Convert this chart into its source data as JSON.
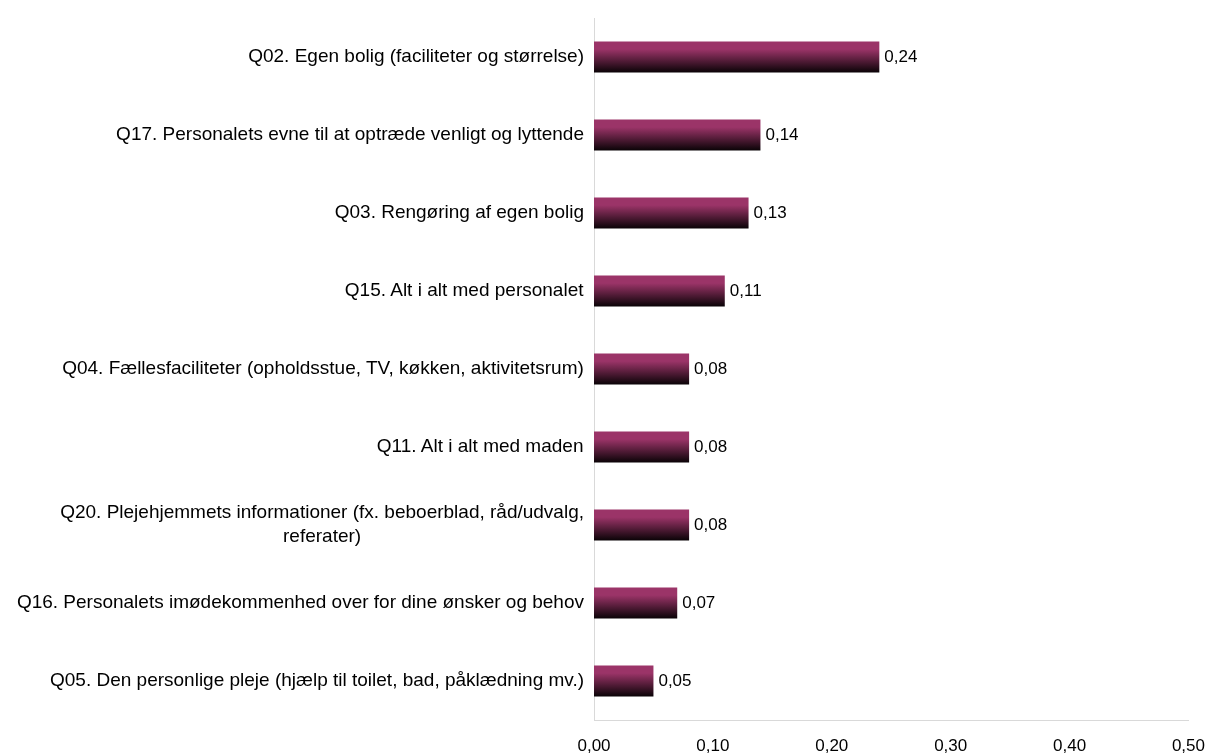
{
  "chart_data": {
    "type": "bar",
    "orientation": "horizontal",
    "categories": [
      "Q02. Egen bolig (faciliteter og størrelse)",
      "Q17. Personalets evne til at optræde venligt og lyttende",
      "Q03. Rengøring af egen bolig",
      "Q15. Alt i alt med personalet",
      "Q04. Fællesfaciliteter (opholdsstue, TV, køkken, aktivitetsrum)",
      "Q11. Alt i alt med maden",
      "Q20. Plejehjemmets informationer (fx. beboerblad, råd/udvalg, referater)",
      "Q16. Personalets imødekommenhed over for dine ønsker og behov",
      "Q05. Den personlige pleje (hjælp til toilet, bad, påklædning mv.)"
    ],
    "values": [
      0.24,
      0.14,
      0.13,
      0.11,
      0.08,
      0.08,
      0.08,
      0.07,
      0.05
    ],
    "value_labels": [
      "0,24",
      "0,14",
      "0,13",
      "0,11",
      "0,08",
      "0,08",
      "0,08",
      "0,07",
      "0,05"
    ],
    "color": "#9b3468",
    "xlim": [
      0,
      0.5
    ],
    "xticks": [
      {
        "value": 0,
        "label": "0,00"
      },
      {
        "value": 0.1,
        "label": "0,10"
      },
      {
        "value": 0.2,
        "label": "0,20"
      },
      {
        "value": 0.3,
        "label": "0,30"
      },
      {
        "value": 0.4,
        "label": "0,40"
      },
      {
        "value": 0.5,
        "label": "0,50"
      }
    ],
    "grid": false,
    "legend": false
  }
}
